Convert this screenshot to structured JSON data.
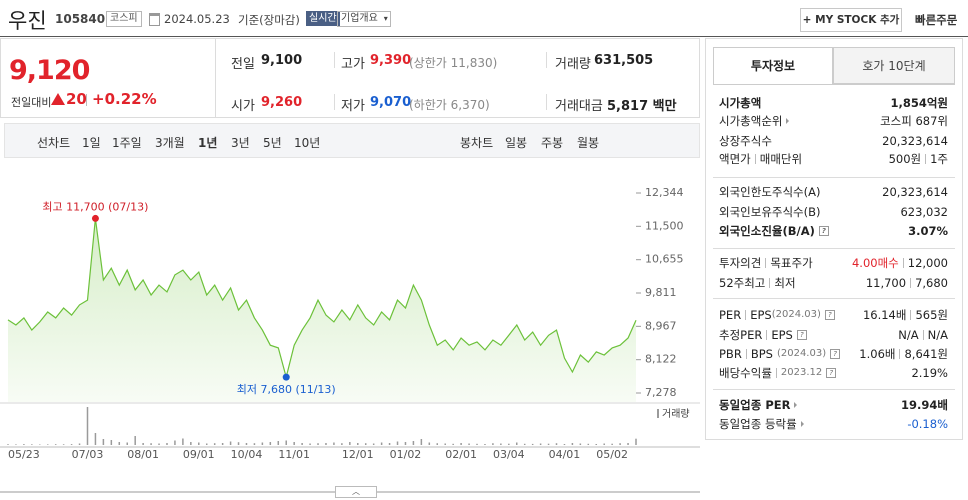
{
  "header": {
    "name": "우진",
    "code": "105840",
    "market": "코스피",
    "date": "2024.05.23",
    "basis": "기준(장마감)",
    "realtime": "실시간",
    "overview": "기업개요",
    "mystock": "+ MY STOCK 추가",
    "quick_order": "빠른주문"
  },
  "price": {
    "value": "9,120",
    "change_label": "전일대비",
    "change": "20",
    "rate": "+0.22%"
  },
  "summary": [
    [
      "전일",
      "9,100"
    ],
    [
      "고가",
      "9,390",
      "(상한가 11,830)"
    ],
    [
      "거래량",
      "631,505"
    ],
    [
      "시가",
      "9,260"
    ],
    [
      "저가",
      "9,070",
      "(하한가 6,370)"
    ],
    [
      "거래대금",
      "5,817 백만"
    ]
  ],
  "period": {
    "line_label": "선차트",
    "line": [
      "1일",
      "1주일",
      "3개월",
      "1년",
      "3년",
      "5년",
      "10년"
    ],
    "candle_label": "봉차트",
    "candle": [
      "일봉",
      "주봉",
      "월봉"
    ]
  },
  "chart_data": {
    "type": "line",
    "categories": [
      null,
      null,
      "05/23",
      null,
      null,
      null,
      null,
      null,
      null,
      null,
      "07/03",
      null,
      null,
      null,
      null,
      null,
      null,
      "08/01",
      null,
      null,
      null,
      null,
      null,
      null,
      "09/01",
      null,
      null,
      null,
      null,
      null,
      "10/04",
      null,
      null,
      null,
      null,
      null,
      "11/01",
      null,
      null,
      null,
      null,
      null,
      null,
      null,
      "12/01",
      null,
      null,
      null,
      null,
      null,
      "01/02",
      null,
      null,
      null,
      null,
      null,
      null,
      "02/01",
      null,
      null,
      null,
      null,
      null,
      "03/04",
      null,
      null,
      null,
      null,
      null,
      null,
      "04/01",
      null,
      null,
      null,
      null,
      null,
      "05/02",
      null,
      null,
      null
    ],
    "series": [
      {
        "color": "#6cc13a",
        "values": [
          9130,
          9000,
          9180,
          8870,
          9080,
          9330,
          9180,
          9430,
          9250,
          9510,
          9630,
          11700,
          10140,
          10440,
          10010,
          10390,
          9890,
          10140,
          9760,
          10010,
          9840,
          10270,
          10390,
          10140,
          10340,
          9760,
          10010,
          9630,
          9940,
          9380,
          9630,
          9180,
          8870,
          8490,
          8420,
          7680,
          8490,
          8870,
          9180,
          9630,
          9250,
          9080,
          9380,
          9130,
          9510,
          9180,
          9000,
          9330,
          9130,
          9630,
          9430,
          10010,
          9630,
          9000,
          8490,
          8620,
          8370,
          8670,
          8490,
          8570,
          8370,
          8620,
          8490,
          8740,
          9000,
          8620,
          8820,
          8490,
          8740,
          8870,
          8160,
          7810,
          8240,
          8060,
          8320,
          8240,
          8420,
          8490,
          8670,
          9120
        ]
      },
      {
        "name": "거래량",
        "color": "#9a9a9a",
        "values": [
          80000,
          60000,
          90000,
          70000,
          50000,
          60000,
          80000,
          70000,
          90000,
          150000,
          3800000,
          1200000,
          600000,
          500000,
          300000,
          250000,
          900000,
          200000,
          180000,
          150000,
          200000,
          450000,
          650000,
          300000,
          250000,
          150000,
          180000,
          200000,
          350000,
          280000,
          200000,
          180000,
          250000,
          300000,
          400000,
          450000,
          300000,
          200000,
          150000,
          180000,
          200000,
          250000,
          180000,
          300000,
          200000,
          180000,
          150000,
          250000,
          200000,
          350000,
          300000,
          400000,
          600000,
          250000,
          180000,
          150000,
          120000,
          200000,
          150000,
          120000,
          100000,
          180000,
          150000,
          130000,
          250000,
          120000,
          110000,
          150000,
          130000,
          180000,
          100000,
          200000,
          150000,
          120000,
          100000,
          150000,
          130000,
          180000,
          200000,
          631505
        ]
      }
    ],
    "ylim": [
      7278,
      12344
    ],
    "yticks": [
      {
        "value": 12344,
        "label": "12,344"
      },
      {
        "value": 11500,
        "label": "11,500"
      },
      {
        "value": 10655,
        "label": "10,655"
      },
      {
        "value": 9811,
        "label": "9,811"
      },
      {
        "value": 8967,
        "label": "8,967"
      },
      {
        "value": 8122,
        "label": "8,122"
      },
      {
        "value": 7278,
        "label": "7,278"
      }
    ],
    "annotations": [
      "최고 11,700 (07/13)",
      "최저 7,680 (11/13)"
    ]
  },
  "invest": {
    "tabs": [
      "투자정보",
      "호가 10단계"
    ],
    "rows": [
      [
        "시가총액",
        "1,854억원"
      ],
      [
        "시가총액순위",
        "코스피 687위"
      ],
      [
        "상장주식수",
        "20,323,614"
      ],
      [
        "액면가",
        "매매단위",
        "500원",
        "1주"
      ],
      [
        "외국인한도주식수(A)",
        "20,323,614"
      ],
      [
        "외국인보유주식수(B)",
        "623,032"
      ],
      [
        "외국인소진율(B/A)",
        "3.07%"
      ],
      [
        "투자의견",
        "목표주가",
        "4.00매수",
        "12,000"
      ],
      [
        "52주최고",
        "최저",
        "11,700",
        "7,680"
      ],
      [
        "PER",
        "EPS",
        "(2024.03)",
        "16.14배",
        "565원"
      ],
      [
        "추정PER",
        "EPS",
        "N/A",
        "N/A"
      ],
      [
        "PBR",
        "BPS",
        "(2024.03)",
        "1.06배",
        "8,641원"
      ],
      [
        "배당수익률",
        "2023.12",
        "2.19%"
      ],
      [
        "동일업종 PER",
        "19.94배"
      ],
      [
        "동일업종 등락률",
        "-0.18%"
      ]
    ]
  }
}
